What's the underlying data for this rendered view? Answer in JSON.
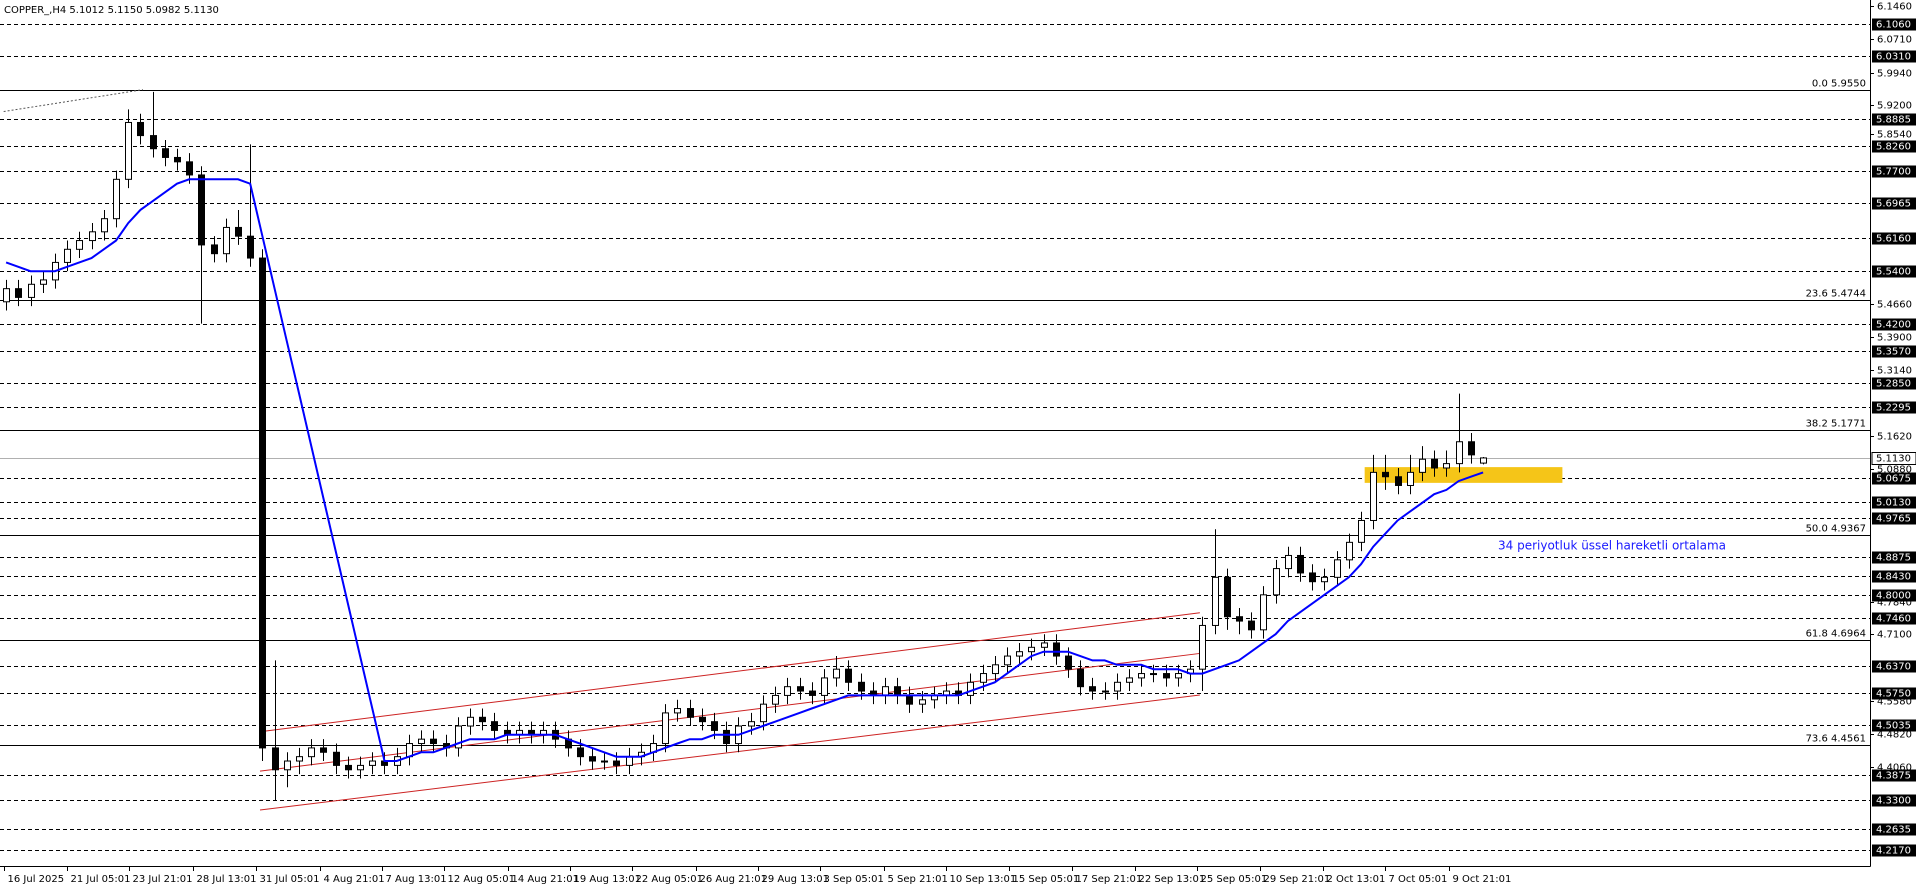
{
  "chart_data": {
    "type": "candlestick",
    "title": "COPPER_,H4  5.1012 5.1150 5.0982 5.1130",
    "annotation": "34 periyotluk üssel hareketli ortalama",
    "xlim": [
      -0.5,
      152.7
    ],
    "ylim": [
      4.18,
      6.16
    ],
    "candle_up_color": "#ffffff",
    "candle_down_color": "#000000",
    "ohlc": [
      [
        5.47,
        5.52,
        5.45,
        5.5
      ],
      [
        5.5,
        5.52,
        5.46,
        5.48
      ],
      [
        5.48,
        5.53,
        5.46,
        5.51
      ],
      [
        5.51,
        5.54,
        5.49,
        5.52
      ],
      [
        5.52,
        5.58,
        5.5,
        5.56
      ],
      [
        5.56,
        5.61,
        5.54,
        5.59
      ],
      [
        5.59,
        5.63,
        5.57,
        5.61
      ],
      [
        5.61,
        5.65,
        5.59,
        5.63
      ],
      [
        5.63,
        5.68,
        5.61,
        5.66
      ],
      [
        5.66,
        5.77,
        5.64,
        5.75
      ],
      [
        5.75,
        5.91,
        5.73,
        5.88
      ],
      [
        5.88,
        5.9,
        5.83,
        5.85
      ],
      [
        5.85,
        5.95,
        5.8,
        5.82
      ],
      [
        5.82,
        5.84,
        5.78,
        5.8
      ],
      [
        5.8,
        5.82,
        5.77,
        5.79
      ],
      [
        5.79,
        5.81,
        5.74,
        5.76
      ],
      [
        5.76,
        5.78,
        5.42,
        5.6
      ],
      [
        5.6,
        5.62,
        5.56,
        5.58
      ],
      [
        5.58,
        5.66,
        5.56,
        5.64
      ],
      [
        5.64,
        5.68,
        5.6,
        5.62
      ],
      [
        5.62,
        5.83,
        5.55,
        5.57
      ],
      [
        5.57,
        5.59,
        4.42,
        4.45
      ],
      [
        4.45,
        4.65,
        4.33,
        4.4
      ],
      [
        4.4,
        4.44,
        4.36,
        4.42
      ],
      [
        4.42,
        4.45,
        4.39,
        4.43
      ],
      [
        4.43,
        4.47,
        4.41,
        4.45
      ],
      [
        4.45,
        4.47,
        4.42,
        4.44
      ],
      [
        4.44,
        4.46,
        4.39,
        4.41
      ],
      [
        4.41,
        4.43,
        4.38,
        4.4
      ],
      [
        4.4,
        4.43,
        4.38,
        4.41
      ],
      [
        4.41,
        4.44,
        4.39,
        4.42
      ],
      [
        4.42,
        4.44,
        4.39,
        4.41
      ],
      [
        4.41,
        4.45,
        4.39,
        4.43
      ],
      [
        4.43,
        4.48,
        4.41,
        4.46
      ],
      [
        4.46,
        4.49,
        4.44,
        4.47
      ],
      [
        4.47,
        4.49,
        4.44,
        4.46
      ],
      [
        4.46,
        4.48,
        4.43,
        4.45
      ],
      [
        4.45,
        4.52,
        4.43,
        4.5
      ],
      [
        4.5,
        4.54,
        4.48,
        4.52
      ],
      [
        4.52,
        4.54,
        4.49,
        4.51
      ],
      [
        4.51,
        4.53,
        4.47,
        4.49
      ],
      [
        4.49,
        4.51,
        4.46,
        4.48
      ],
      [
        4.48,
        4.51,
        4.46,
        4.49
      ],
      [
        4.49,
        4.51,
        4.46,
        4.48
      ],
      [
        4.48,
        4.51,
        4.46,
        4.49
      ],
      [
        4.49,
        4.51,
        4.45,
        4.47
      ],
      [
        4.47,
        4.49,
        4.43,
        4.45
      ],
      [
        4.45,
        4.47,
        4.41,
        4.43
      ],
      [
        4.43,
        4.45,
        4.4,
        4.42
      ],
      [
        4.42,
        4.44,
        4.4,
        4.42
      ],
      [
        4.42,
        4.44,
        4.39,
        4.41
      ],
      [
        4.41,
        4.45,
        4.39,
        4.43
      ],
      [
        4.43,
        4.46,
        4.41,
        4.44
      ],
      [
        4.44,
        4.48,
        4.42,
        4.46
      ],
      [
        4.46,
        4.55,
        4.44,
        4.53
      ],
      [
        4.53,
        4.56,
        4.51,
        4.54
      ],
      [
        4.54,
        4.56,
        4.5,
        4.52
      ],
      [
        4.52,
        4.54,
        4.49,
        4.51
      ],
      [
        4.51,
        4.53,
        4.47,
        4.49
      ],
      [
        4.49,
        4.51,
        4.44,
        4.46
      ],
      [
        4.46,
        4.52,
        4.44,
        4.5
      ],
      [
        4.5,
        4.53,
        4.48,
        4.51
      ],
      [
        4.51,
        4.57,
        4.49,
        4.55
      ],
      [
        4.55,
        4.59,
        4.53,
        4.57
      ],
      [
        4.57,
        4.61,
        4.55,
        4.59
      ],
      [
        4.59,
        4.61,
        4.56,
        4.58
      ],
      [
        4.58,
        4.6,
        4.55,
        4.57
      ],
      [
        4.57,
        4.63,
        4.55,
        4.61
      ],
      [
        4.61,
        4.66,
        4.59,
        4.63
      ],
      [
        4.63,
        4.65,
        4.58,
        4.6
      ],
      [
        4.6,
        4.62,
        4.56,
        4.58
      ],
      [
        4.58,
        4.6,
        4.55,
        4.57
      ],
      [
        4.57,
        4.61,
        4.55,
        4.59
      ],
      [
        4.59,
        4.61,
        4.55,
        4.57
      ],
      [
        4.57,
        4.59,
        4.53,
        4.55
      ],
      [
        4.55,
        4.58,
        4.53,
        4.56
      ],
      [
        4.56,
        4.59,
        4.54,
        4.57
      ],
      [
        4.57,
        4.6,
        4.55,
        4.58
      ],
      [
        4.58,
        4.6,
        4.55,
        4.57
      ],
      [
        4.57,
        4.62,
        4.55,
        4.6
      ],
      [
        4.6,
        4.64,
        4.58,
        4.62
      ],
      [
        4.62,
        4.66,
        4.6,
        4.64
      ],
      [
        4.64,
        4.68,
        4.62,
        4.66
      ],
      [
        4.66,
        4.69,
        4.64,
        4.67
      ],
      [
        4.67,
        4.7,
        4.65,
        4.68
      ],
      [
        4.68,
        4.71,
        4.66,
        4.69
      ],
      [
        4.69,
        4.71,
        4.64,
        4.66
      ],
      [
        4.66,
        4.68,
        4.61,
        4.63
      ],
      [
        4.63,
        4.65,
        4.57,
        4.59
      ],
      [
        4.59,
        4.61,
        4.56,
        4.58
      ],
      [
        4.58,
        4.6,
        4.56,
        4.58
      ],
      [
        4.58,
        4.62,
        4.56,
        4.6
      ],
      [
        4.6,
        4.63,
        4.58,
        4.61
      ],
      [
        4.61,
        4.64,
        4.59,
        4.62
      ],
      [
        4.62,
        4.64,
        4.6,
        4.62
      ],
      [
        4.62,
        4.64,
        4.59,
        4.61
      ],
      [
        4.61,
        4.64,
        4.59,
        4.62
      ],
      [
        4.62,
        4.65,
        4.6,
        4.63
      ],
      [
        4.63,
        4.75,
        4.58,
        4.73
      ],
      [
        4.73,
        4.95,
        4.71,
        4.84
      ],
      [
        4.84,
        4.86,
        4.72,
        4.75
      ],
      [
        4.75,
        4.77,
        4.71,
        4.74
      ],
      [
        4.74,
        4.76,
        4.7,
        4.72
      ],
      [
        4.72,
        4.82,
        4.7,
        4.8
      ],
      [
        4.8,
        4.88,
        4.78,
        4.86
      ],
      [
        4.86,
        4.91,
        4.84,
        4.89
      ],
      [
        4.89,
        4.91,
        4.83,
        4.85
      ],
      [
        4.85,
        4.87,
        4.81,
        4.83
      ],
      [
        4.83,
        4.86,
        4.81,
        4.84
      ],
      [
        4.84,
        4.9,
        4.82,
        4.88
      ],
      [
        4.88,
        4.94,
        4.86,
        4.92
      ],
      [
        4.92,
        4.99,
        4.9,
        4.97
      ],
      [
        4.97,
        5.12,
        4.95,
        5.08
      ],
      [
        5.08,
        5.12,
        5.04,
        5.07
      ],
      [
        5.07,
        5.09,
        5.03,
        5.05
      ],
      [
        5.05,
        5.12,
        5.03,
        5.08
      ],
      [
        5.08,
        5.14,
        5.06,
        5.11
      ],
      [
        5.11,
        5.13,
        5.07,
        5.09
      ],
      [
        5.09,
        5.13,
        5.07,
        5.1
      ],
      [
        5.1,
        5.26,
        5.08,
        5.15
      ],
      [
        5.15,
        5.17,
        5.1,
        5.12
      ],
      [
        5.1012,
        5.115,
        5.0982,
        5.113
      ]
    ],
    "ema": {
      "color": "#0000ff",
      "values": [
        5.56,
        5.55,
        5.54,
        5.54,
        5.54,
        5.55,
        5.56,
        5.57,
        5.59,
        5.61,
        5.65,
        5.68,
        5.7,
        5.72,
        5.74,
        5.75,
        5.75,
        5.75,
        5.75,
        5.75,
        5.74,
        5.62,
        5.5,
        5.38,
        5.26,
        5.14,
        5.02,
        4.9,
        4.78,
        4.66,
        4.54,
        4.42,
        4.42,
        4.43,
        4.44,
        4.44,
        4.45,
        4.46,
        4.47,
        4.47,
        4.47,
        4.48,
        4.48,
        4.48,
        4.48,
        4.48,
        4.47,
        4.46,
        4.45,
        4.44,
        4.43,
        4.43,
        4.43,
        4.44,
        4.45,
        4.46,
        4.47,
        4.47,
        4.48,
        4.48,
        4.48,
        4.49,
        4.5,
        4.51,
        4.52,
        4.53,
        4.54,
        4.55,
        4.56,
        4.57,
        4.57,
        4.57,
        4.57,
        4.57,
        4.57,
        4.57,
        4.57,
        4.57,
        4.57,
        4.58,
        4.59,
        4.6,
        4.62,
        4.64,
        4.66,
        4.67,
        4.67,
        4.67,
        4.66,
        4.65,
        4.65,
        4.64,
        4.64,
        4.64,
        4.63,
        4.63,
        4.63,
        4.62,
        4.62,
        4.63,
        4.64,
        4.65,
        4.67,
        4.69,
        4.71,
        4.74,
        4.76,
        4.78,
        4.8,
        4.82,
        4.84,
        4.87,
        4.91,
        4.94,
        4.97,
        4.99,
        5.01,
        5.03,
        5.04,
        5.06,
        5.07,
        5.08
      ]
    },
    "current_price": {
      "value": 5.113,
      "label": "5.1130"
    },
    "yticks": [
      {
        "value": 6.146,
        "label": "6.1460"
      },
      {
        "value": 6.071,
        "label": "6.0710"
      },
      {
        "value": 5.994,
        "label": "5.9940"
      },
      {
        "value": 5.92,
        "label": "5.9200"
      },
      {
        "value": 5.854,
        "label": "5.8540"
      },
      {
        "value": 5.466,
        "label": "5.4660"
      },
      {
        "value": 5.39,
        "label": "5.3900"
      },
      {
        "value": 5.314,
        "label": "5.3140"
      },
      {
        "value": 5.162,
        "label": "5.1620"
      },
      {
        "value": 5.088,
        "label": "5.0880"
      },
      {
        "value": 4.784,
        "label": "4.7840"
      },
      {
        "value": 4.71,
        "label": "4.7100"
      },
      {
        "value": 4.558,
        "label": "4.5580"
      },
      {
        "value": 4.482,
        "label": "4.4820"
      },
      {
        "value": 4.406,
        "label": "4.4060"
      }
    ],
    "levels": [
      {
        "value": 6.106,
        "label": "6.1060"
      },
      {
        "value": 6.031,
        "label": "6.0310"
      },
      {
        "value": 5.8885,
        "label": "5.8885"
      },
      {
        "value": 5.826,
        "label": "5.8260"
      },
      {
        "value": 5.77,
        "label": "5.7700"
      },
      {
        "value": 5.6965,
        "label": "5.6965"
      },
      {
        "value": 5.616,
        "label": "5.6160"
      },
      {
        "value": 5.54,
        "label": "5.5400"
      },
      {
        "value": 5.42,
        "label": "5.4200"
      },
      {
        "value": 5.357,
        "label": "5.3570"
      },
      {
        "value": 5.285,
        "label": "5.2850"
      },
      {
        "value": 5.2295,
        "label": "5.2295"
      },
      {
        "value": 5.0675,
        "label": "5.0675"
      },
      {
        "value": 5.013,
        "label": "5.0130"
      },
      {
        "value": 4.9765,
        "label": "4.9765"
      },
      {
        "value": 4.8875,
        "label": "4.8875"
      },
      {
        "value": 4.843,
        "label": "4.8430"
      },
      {
        "value": 4.8,
        "label": "4.8000"
      },
      {
        "value": 4.746,
        "label": "4.7460"
      },
      {
        "value": 4.637,
        "label": "4.6370"
      },
      {
        "value": 4.575,
        "label": "4.5750"
      },
      {
        "value": 4.5035,
        "label": "4.5035"
      },
      {
        "value": 4.3875,
        "label": "4.3875"
      },
      {
        "value": 4.33,
        "label": "4.3300"
      },
      {
        "value": 4.2635,
        "label": "4.2635"
      },
      {
        "value": 4.217,
        "label": "4.2170"
      }
    ],
    "fib": [
      {
        "value": 5.955,
        "label": "0.0 5.9550"
      },
      {
        "value": 5.4744,
        "label": "23.6 5.4744"
      },
      {
        "value": 5.1771,
        "label": "38.2 5.1771"
      },
      {
        "value": 4.9367,
        "label": "50.0 4.9367"
      },
      {
        "value": 4.6964,
        "label": "61.8 4.6964"
      },
      {
        "value": 4.4561,
        "label": "73.6 4.4561"
      }
    ],
    "trendlines": [
      {
        "color": "#cc2222",
        "x": [
          20.8,
          97.8
        ],
        "y": [
          4.487,
          4.759
        ]
      },
      {
        "color": "#cc2222",
        "x": [
          20.8,
          97.8
        ],
        "y": [
          4.397,
          4.666
        ]
      },
      {
        "color": "#cc2222",
        "x": [
          20.8,
          97.8
        ],
        "y": [
          4.308,
          4.571
        ]
      }
    ],
    "fib_trend": {
      "color": "#555555",
      "x": [
        -0.2,
        11.2
      ],
      "y": [
        5.905,
        5.955
      ]
    },
    "zone": {
      "color": "#f5c518",
      "x": [
        111.3,
        127.5
      ],
      "y": [
        5.056,
        5.092
      ]
    },
    "xticks": [
      {
        "value": -0.2,
        "label": "16 Jul 2025"
      },
      {
        "value": 5,
        "label": "21 Jul 05:01"
      },
      {
        "value": 10.1,
        "label": "23 Jul 21:01"
      },
      {
        "value": 15.3,
        "label": "28 Jul 13:01"
      },
      {
        "value": 20.5,
        "label": "31 Jul 05:01"
      },
      {
        "value": 25.7,
        "label": "4 Aug 21:01"
      },
      {
        "value": 30.8,
        "label": "7 Aug 13:01"
      },
      {
        "value": 35.9,
        "label": "12 Aug 05:01"
      },
      {
        "value": 41.1,
        "label": "14 Aug 21:01"
      },
      {
        "value": 46.2,
        "label": "19 Aug 13:01"
      },
      {
        "value": 51.3,
        "label": "22 Aug 05:01"
      },
      {
        "value": 56.5,
        "label": "26 Aug 21:01"
      },
      {
        "value": 61.6,
        "label": "29 Aug 13:01"
      },
      {
        "value": 66.7,
        "label": "3 Sep 05:01"
      },
      {
        "value": 71.9,
        "label": "5 Sep 21:01"
      },
      {
        "value": 77,
        "label": "10 Sep 13:01"
      },
      {
        "value": 82.2,
        "label": "15 Sep 05:01"
      },
      {
        "value": 87.3,
        "label": "17 Sep 21:01"
      },
      {
        "value": 92.5,
        "label": "22 Sep 13:01"
      },
      {
        "value": 97.6,
        "label": "25 Sep 05:01"
      },
      {
        "value": 102.7,
        "label": "29 Sep 21:01"
      },
      {
        "value": 107.9,
        "label": "2 Oct 13:01"
      },
      {
        "value": 113,
        "label": "7 Oct 05:01"
      },
      {
        "value": 118.2,
        "label": "9 Oct 21:01"
      }
    ]
  }
}
